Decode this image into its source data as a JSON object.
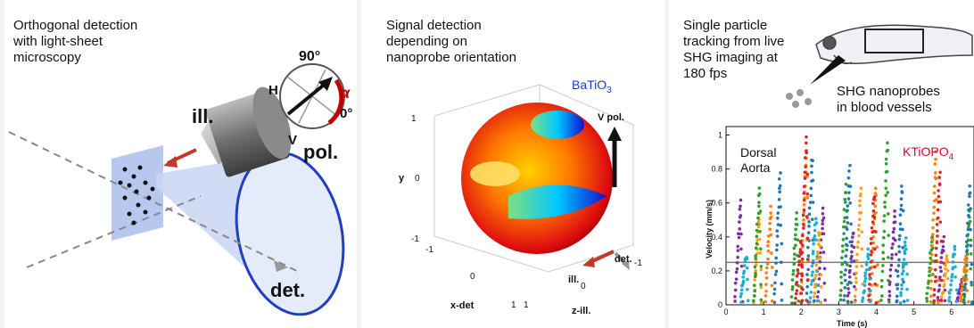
{
  "panel1": {
    "title": "Orthogonal detection\nwith light-sheet\nmicroscopy",
    "ill_label": "ill.",
    "det_label": "det.",
    "pol_label": "pol.",
    "angle_90": "90°",
    "angle_0": "0°",
    "H_label": "H",
    "V_label": "V",
    "alpha_label": "α",
    "colors": {
      "sheet": "#9fb4e8",
      "cone": "#dde6fa",
      "cone_edge": "#1f3fbf",
      "alpha": "#c00000",
      "arrow_ill": "#c0392b"
    }
  },
  "panel2": {
    "title": "Signal detection\ndepending on\nnanoprobe orientation",
    "material": "BaTiO",
    "material_sub": "3",
    "vpol_label": "V pol.",
    "det_label": "det.",
    "ill_label": "ill.",
    "y_axis": "y",
    "x_axis": "x-det",
    "z_axis": "z-ill.",
    "y_ticks": [
      "1",
      "0",
      "-1"
    ],
    "x_ticks": [
      "-1",
      "0",
      "1"
    ],
    "z_ticks": [
      "1",
      "0",
      "-1"
    ]
  },
  "panel3": {
    "title": "Single particle\ntracking from live\nSHG imaging at\n180 fps",
    "nanoprobes_label": "SHG nanoprobes\nin blood vessels",
    "dorsal_label": "Dorsal\nAorta",
    "material": "KTiOPO",
    "material_sub": "4",
    "ylabel": "Velocity (mm/s)",
    "xlabel": "Time (s)",
    "y_ticks": [
      "0",
      "0.2",
      "0.4",
      "0.6",
      "0.8",
      "1"
    ],
    "x_ticks": [
      "0",
      "1",
      "2",
      "3",
      "4",
      "5",
      "6"
    ],
    "colors": {
      "material": "#e8002a",
      "baseline": "#777777"
    }
  },
  "chart_data": {
    "type": "scatter",
    "title": "",
    "xlabel": "Time (s)",
    "ylabel": "Velocity (mm/s)",
    "xlim": [
      0,
      6.6
    ],
    "ylim": [
      0,
      1.05
    ],
    "baseline": 0.25,
    "series": [
      {
        "color": "#7b2fa0",
        "peaks": [
          [
            0.4,
            0.62
          ],
          [
            2.6,
            0.58
          ],
          [
            3.4,
            0.45
          ],
          [
            4.5,
            0.55
          ],
          [
            5.8,
            0.4
          ],
          [
            6.3,
            0.15
          ]
        ]
      },
      {
        "color": "#ff9f1a",
        "peaks": [
          [
            0.9,
            0.55
          ],
          [
            2.5,
            0.45
          ],
          [
            3.6,
            0.7
          ],
          [
            5.9,
            0.3
          ]
        ]
      },
      {
        "color": "#2ca02c",
        "peaks": [
          [
            0.9,
            0.7
          ],
          [
            1.9,
            0.55
          ],
          [
            3.2,
            0.72
          ],
          [
            4.3,
            0.97
          ],
          [
            5.5,
            0.42
          ],
          [
            6.5,
            0.55
          ]
        ]
      },
      {
        "color": "#1f77b4",
        "peaks": [
          [
            1.45,
            0.78
          ],
          [
            2.3,
            0.88
          ],
          [
            3.3,
            0.82
          ],
          [
            4.7,
            0.72
          ],
          [
            6.5,
            0.72
          ]
        ]
      },
      {
        "color": "#ff7f0e",
        "peaks": [
          [
            1.2,
            0.58
          ],
          [
            2.15,
            0.93
          ],
          [
            4.0,
            0.7
          ],
          [
            5.6,
            0.92
          ],
          [
            6.4,
            0.3
          ]
        ]
      },
      {
        "color": "#d62728",
        "peaks": [
          [
            2.15,
            1.0
          ],
          [
            2.0,
            0.38
          ],
          [
            3.95,
            0.65
          ],
          [
            5.7,
            0.8
          ]
        ]
      },
      {
        "color": "#1ab0d6",
        "peaks": [
          [
            0.55,
            0.3
          ],
          [
            2.4,
            0.52
          ],
          [
            3.8,
            0.33
          ],
          [
            4.8,
            0.4
          ],
          [
            6.1,
            0.35
          ]
        ]
      }
    ]
  }
}
